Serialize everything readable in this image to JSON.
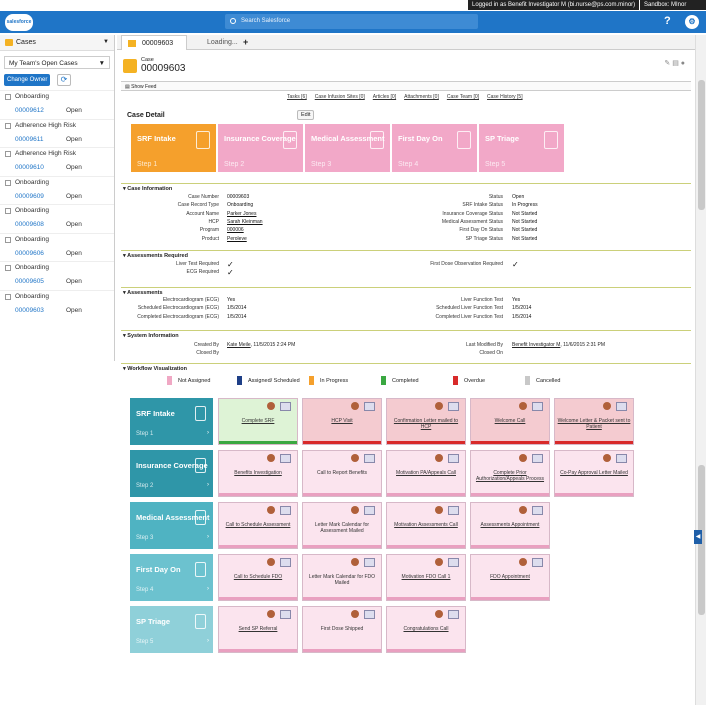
{
  "topbar": {
    "login": "Logged in as Benefit Investigator M (bi.nurse@ps.com.minor)",
    "sandbox": "Sandbox:   MInor"
  },
  "header": {
    "logo": "salesforce",
    "search_placeholder": "Search Salesforce",
    "help": "?",
    "gear": "⚙"
  },
  "sidebar": {
    "title": "Cases",
    "view": "My Team's Open Cases",
    "change_owner": "Change Owner",
    "items": [
      {
        "name": "Onboarding",
        "number": "00009612",
        "status": "Open"
      },
      {
        "name": "Adherence High Risk",
        "number": "00009611",
        "status": "Open"
      },
      {
        "name": "Adherence High Risk",
        "number": "00009610",
        "status": "Open"
      },
      {
        "name": "Onboarding",
        "number": "00009609",
        "status": "Open"
      },
      {
        "name": "Onboarding",
        "number": "00009608",
        "status": "Open"
      },
      {
        "name": "Onboarding",
        "number": "00009606",
        "status": "Open"
      },
      {
        "name": "Onboarding",
        "number": "00009605",
        "status": "Open"
      },
      {
        "name": "Onboarding",
        "number": "00009603",
        "status": "Open"
      }
    ]
  },
  "tabs": {
    "tab1": "00009603",
    "tab2": "Loading...",
    "plus": "+"
  },
  "case": {
    "label": "Case",
    "number": "00009603",
    "show_feed": "Show Feed"
  },
  "related_links": [
    "Tasks [6]",
    "Case Infusion Sites [0]",
    "Articles [0]",
    "Attachments [0]",
    "Case Team [0]",
    "Case History [5]"
  ],
  "case_detail": {
    "title": "Case Detail",
    "edit": "Edit"
  },
  "steps": [
    {
      "title": "SRF Intake",
      "step": "Step 1",
      "color": "#f5a02c"
    },
    {
      "title": "Insurance Coverage",
      "step": "Step 2",
      "color": "#f2a8c8"
    },
    {
      "title": "Medical Assessment",
      "step": "Step 3",
      "color": "#f2a8c8"
    },
    {
      "title": "First Day On",
      "step": "Step 4",
      "color": "#f2a8c8"
    },
    {
      "title": "SP Triage",
      "step": "Step 5",
      "color": "#f2a8c8"
    }
  ],
  "case_information": {
    "title": "Case Information",
    "left": [
      {
        "label": "Case Number",
        "value": "00009603"
      },
      {
        "label": "Case Record Type",
        "value": "Onboarding"
      },
      {
        "label": "Account Name",
        "value": "Parker Jones"
      },
      {
        "label": "HCP",
        "value": "Sarah Kleinman"
      },
      {
        "label": "Program",
        "value": "000006"
      },
      {
        "label": "Product",
        "value": "Peroleve"
      }
    ],
    "right": [
      {
        "label": "Status",
        "value": "Open"
      },
      {
        "label": "SRF Intake Status",
        "value": "In Progress"
      },
      {
        "label": "Insurance Coverage Status",
        "value": "Not Started"
      },
      {
        "label": "Medical Assessment Status",
        "value": "Not Started"
      },
      {
        "label": "First Day On Status",
        "value": "Not Started"
      },
      {
        "label": "SP Triage Status",
        "value": "Not Started"
      }
    ]
  },
  "assessments_required": {
    "title": "Assessments Required",
    "left": [
      {
        "label": "Liver Test Required",
        "value": "✓"
      },
      {
        "label": "ECG Required",
        "value": "✓"
      }
    ],
    "right": [
      {
        "label": "First Dose Observation Required",
        "value": "✓"
      }
    ]
  },
  "assessments": {
    "title": "Assessments",
    "left": [
      {
        "label": "Electrocardiogram (ECG)",
        "value": "Yes"
      },
      {
        "label": "Scheduled Electrocardiogram (ECG)",
        "value": "1/5/2014"
      },
      {
        "label": "Completed Electrocardiogram (ECG)",
        "value": "1/5/2014"
      }
    ],
    "right": [
      {
        "label": "Liver Function Test",
        "value": "Yes"
      },
      {
        "label": "Scheduled Liver Function Test",
        "value": "1/5/2014"
      },
      {
        "label": "Completed Liver Function Test",
        "value": "1/5/2014"
      }
    ]
  },
  "system_information": {
    "title": "System Information",
    "created_by_label": "Created By",
    "created_by": "Kate Meile",
    "created_date": ", 11/5/2015 2:24 PM",
    "closed_by_label": "Closed By",
    "modified_label": "Last Modified By",
    "modified_by": "Benefit Investigator M",
    "modified_date": ", 11/6/2015 2:31 PM",
    "closed_on_label": "Closed On"
  },
  "workflow": {
    "title": "Workflow Visualization",
    "legend": [
      {
        "label": "Not Assigned",
        "color": "#f0a8c4"
      },
      {
        "label": "Assigned/ Scheduled",
        "color": "#1e3f87"
      },
      {
        "label": "In Progress",
        "color": "#f5a02c"
      },
      {
        "label": "Completed",
        "color": "#3aa841"
      },
      {
        "label": "Overdue",
        "color": "#d82a2a"
      },
      {
        "label": "Cancelled",
        "color": "#c8c8c8"
      }
    ],
    "rows": [
      {
        "title": "SRF Intake",
        "step": "Step 1",
        "color": "#2f96a8",
        "cards": [
          {
            "label": "Complete SRF",
            "bg": "#def3d6",
            "bar": "#3aa841"
          },
          {
            "label": "HCP Visit",
            "bg": "#f4cbd0",
            "bar": "#d82a2a"
          },
          {
            "label": "Confirmation Letter mailed to HCP",
            "bg": "#f4cbd0",
            "bar": "#d82a2a"
          },
          {
            "label": "Welcome Call",
            "bg": "#f4cbd0",
            "bar": "#d82a2a"
          },
          {
            "label": "Welcome Letter & Packet sent to Patient",
            "bg": "#f4cbd0",
            "bar": "#d82a2a"
          }
        ]
      },
      {
        "title": "Insurance Coverage",
        "step": "Step 2",
        "color": "#2f96a8",
        "cards": [
          {
            "label": "Benefits Investigation",
            "bg": "#fbe4ee",
            "bar": "#e9a0c0"
          },
          {
            "label": "Call to Report Benefits",
            "bg": "#fbe4ee",
            "bar": "#e9a0c0"
          },
          {
            "label": "Motivation PA/Appeals Call",
            "bg": "#fbe4ee",
            "bar": "#e9a0c0"
          },
          {
            "label": "Complete Prior Authorization/Appeals Process",
            "bg": "#fbe4ee",
            "bar": "#e9a0c0"
          },
          {
            "label": "Co-Pay Approval Letter Mailed",
            "bg": "#fbe4ee",
            "bar": "#e9a0c0"
          }
        ]
      },
      {
        "title": "Medical Assessment",
        "step": "Step 3",
        "color": "#4fb3c2",
        "cards": [
          {
            "label": "Call to Schedule Assessment",
            "bg": "#fbe4ee",
            "bar": "#e9a0c0"
          },
          {
            "label": "Letter Mark Calendar for Assessment Mailed",
            "bg": "#fbe4ee",
            "bar": "#e9a0c0"
          },
          {
            "label": "Motivation Assessments Call",
            "bg": "#fbe4ee",
            "bar": "#e9a0c0"
          },
          {
            "label": "Assessments Appointment",
            "bg": "#fbe4ee",
            "bar": "#e9a0c0"
          }
        ]
      },
      {
        "title": "First Day On",
        "step": "Step 4",
        "color": "#6cc2cf",
        "cards": [
          {
            "label": "Call to Schedule FDO",
            "bg": "#fbe4ee",
            "bar": "#e9a0c0"
          },
          {
            "label": "Letter Mark Calendar for FDO Mailed",
            "bg": "#fbe4ee",
            "bar": "#e9a0c0"
          },
          {
            "label": "Motivation FDO Call 1",
            "bg": "#fbe4ee",
            "bar": "#e9a0c0"
          },
          {
            "label": "FDO Appointment",
            "bg": "#fbe4ee",
            "bar": "#e9a0c0"
          }
        ]
      },
      {
        "title": "SP Triage",
        "step": "Step 5",
        "color": "#8fd0d9",
        "cards": [
          {
            "label": "Send SP Referral",
            "bg": "#fbe4ee",
            "bar": "#e9a0c0"
          },
          {
            "label": "First Dose Shipped",
            "bg": "#fbe4ee",
            "bar": "#e9a0c0"
          },
          {
            "label": "Congratulations Call",
            "bg": "#fbe4ee",
            "bar": "#e9a0c0"
          }
        ]
      }
    ]
  }
}
